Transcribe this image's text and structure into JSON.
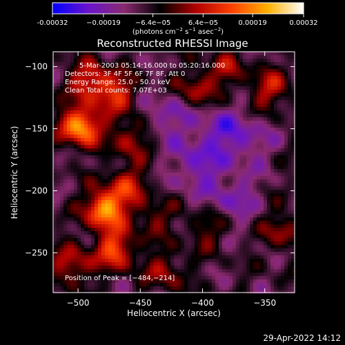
{
  "colorbar": {
    "ticks": [
      {
        "value": -0.00032,
        "label": "-0.00032"
      },
      {
        "value": -0.00019,
        "label": "−0.00019"
      },
      {
        "value": -6.4e-05,
        "label": "−6.4e−05"
      },
      {
        "value": 6.4e-05,
        "label": "6.4e−05"
      },
      {
        "value": 0.00019,
        "label": "0.00019"
      },
      {
        "value": 0.00032,
        "label": "0.00032"
      }
    ],
    "range": [
      -0.00032,
      0.00032
    ],
    "units_main": "(photons cm",
    "units_exp1": "−2",
    "units_mid": " s",
    "units_exp2": "−1",
    "units_end": " asec",
    "units_exp3": "−2",
    "units_close": ")",
    "colors": [
      "#0000ff",
      "#6a14cc",
      "#8a2a70",
      "#000000",
      "#b00000",
      "#ff4000",
      "#ffb000",
      "#ffffff"
    ]
  },
  "chart_data": {
    "type": "heatmap",
    "title": "Reconstructed RHESSI Image",
    "xlabel": "Heliocentric X (arcsec)",
    "ylabel": "Heliocentric Y (arcsec)",
    "xlim": [
      -520,
      -326
    ],
    "ylim": [
      -282,
      -88
    ],
    "xticks": [
      {
        "value": -500,
        "label": "−500"
      },
      {
        "value": -450,
        "label": "−450"
      },
      {
        "value": -400,
        "label": "−400"
      },
      {
        "value": -350,
        "label": "−350"
      }
    ],
    "yticks": [
      {
        "value": -100,
        "label": "−100"
      },
      {
        "value": -150,
        "label": "−150"
      },
      {
        "value": -200,
        "label": "−200"
      },
      {
        "value": -250,
        "label": "−250"
      }
    ],
    "annotations": [
      "5-Mar-2003 05:14:16.000 to 05:20:16.000",
      "Detectors: 3F 4F 5F 6F 7F 8F, Att 0",
      "Energy Range: 25.0 - 50.0 keV",
      "Clean     Total counts: 7.07E+03"
    ],
    "peak_label": "Position of Peak = [−484,−214]",
    "peak": [
      -484,
      -214
    ],
    "hotspots": [
      {
        "x": -498,
        "y": -148,
        "w": 0.00032
      },
      {
        "x": -478,
        "y": -215,
        "w": 0.00032
      },
      {
        "x": -490,
        "y": -112,
        "w": 0.0002
      },
      {
        "x": -468,
        "y": -122,
        "w": 0.00017
      },
      {
        "x": -458,
        "y": -158,
        "w": 0.00014
      },
      {
        "x": -470,
        "y": -248,
        "w": 0.00022
      },
      {
        "x": -505,
        "y": -260,
        "w": 0.00016
      },
      {
        "x": -405,
        "y": -118,
        "w": 0.00014
      },
      {
        "x": -345,
        "y": -118,
        "w": 0.00015
      },
      {
        "x": -430,
        "y": -265,
        "w": 0.00012
      },
      {
        "x": -460,
        "y": -195,
        "w": 0.00015
      },
      {
        "x": -335,
        "y": -232,
        "w": 0.00012
      },
      {
        "x": -398,
        "y": -232,
        "w": 9e-05
      },
      {
        "x": -380,
        "y": -102,
        "w": 0.00011
      },
      {
        "x": -440,
        "y": -222,
        "w": 0.0001
      }
    ],
    "coldspots": [
      {
        "x": -405,
        "y": -180,
        "w": 0.00012
      },
      {
        "x": -430,
        "y": -140,
        "w": 0.0001
      },
      {
        "x": -365,
        "y": -160,
        "w": 0.0001
      },
      {
        "x": -375,
        "y": -205,
        "w": 0.0001
      },
      {
        "x": -390,
        "y": -150,
        "w": 0.0001
      }
    ]
  },
  "footer": {
    "timestamp": "29-Apr-2022 14:12"
  }
}
